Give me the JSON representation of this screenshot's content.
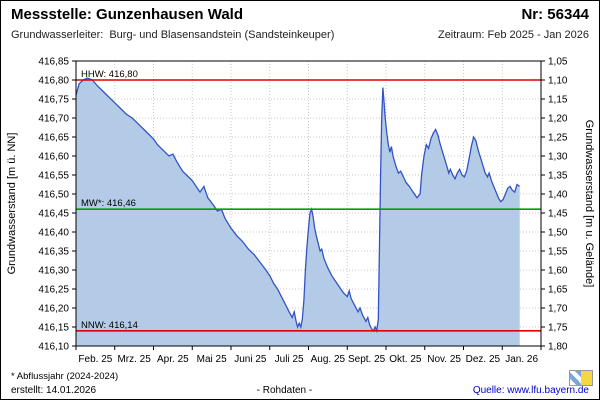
{
  "header": {
    "title": "Messstelle: Gunzenhausen Wald",
    "number": "Nr: 56344",
    "aquifer_label": "Grundwasserleiter:",
    "aquifer_value": "Burg- und Blasensandstein (Sandsteinkeuper)",
    "period": "Zeitraum: Feb 2025 - Jan 2026"
  },
  "footer": {
    "note": "* Abflussjahr (2024-2024)",
    "created": "erstellt:  14.01.2026",
    "center": "- Rohdaten -",
    "source": "Quelle: www.lfu.bayern.de"
  },
  "chart_data": {
    "type": "area",
    "title": "",
    "ylabel_left": "Grundwasserstand [m ü. NN]",
    "ylabel_right": "Grundwasserstand [m u. Gelände]",
    "ylim_left": [
      416.1,
      416.85
    ],
    "ylim_right": [
      1.8,
      1.05
    ],
    "y_tick_step": 0.05,
    "y_ticks_left": [
      "416,85",
      "416,80",
      "416,75",
      "416,70",
      "416,65",
      "416,60",
      "416,55",
      "416,50",
      "416,45",
      "416,40",
      "416,35",
      "416,30",
      "416,25",
      "416,20",
      "416,15",
      "416,10"
    ],
    "y_ticks_right": [
      "1,05",
      "1,10",
      "1,15",
      "1,20",
      "1,25",
      "1,30",
      "1,35",
      "1,40",
      "1,45",
      "1,50",
      "1,55",
      "1,60",
      "1,65",
      "1,70",
      "1,75",
      "1,80"
    ],
    "x_tick_labels": [
      "Feb. 25",
      "Mrz. 25",
      "Apr. 25",
      "Mai 25",
      "Juni 25",
      "Juli 25",
      "Aug. 25",
      "Sept. 25",
      "Okt. 25",
      "Nov. 25",
      "Dez. 25",
      "Jan. 26"
    ],
    "grid": true,
    "legend": "none",
    "reference_lines": [
      {
        "name": "HHW",
        "label": "HHW: 416,80",
        "value": 416.8,
        "color": "#e00000"
      },
      {
        "name": "MW",
        "label": "MW*: 416,46",
        "value": 416.46,
        "color": "#00a000"
      },
      {
        "name": "NNW",
        "label": "NNW: 416,14",
        "value": 416.14,
        "color": "#e00000"
      }
    ],
    "colors": {
      "area_fill": "#b3cbe7",
      "line": "#3353c4"
    },
    "series": [
      {
        "name": "Grundwasserstand Rohdaten",
        "x_unit": "months_from_Feb_2025",
        "points": [
          [
            0.0,
            416.76
          ],
          [
            0.08,
            416.79
          ],
          [
            0.18,
            416.8
          ],
          [
            0.3,
            416.805
          ],
          [
            0.42,
            416.8
          ],
          [
            0.55,
            416.785
          ],
          [
            0.7,
            416.77
          ],
          [
            0.85,
            416.755
          ],
          [
            1.0,
            416.74
          ],
          [
            1.15,
            416.725
          ],
          [
            1.3,
            416.71
          ],
          [
            1.45,
            416.7
          ],
          [
            1.6,
            416.685
          ],
          [
            1.75,
            416.67
          ],
          [
            1.9,
            416.655
          ],
          [
            2.0,
            416.645
          ],
          [
            2.1,
            416.63
          ],
          [
            2.25,
            416.615
          ],
          [
            2.4,
            416.6
          ],
          [
            2.5,
            416.605
          ],
          [
            2.6,
            416.585
          ],
          [
            2.75,
            416.56
          ],
          [
            2.9,
            416.545
          ],
          [
            3.0,
            416.535
          ],
          [
            3.1,
            416.52
          ],
          [
            3.2,
            416.505
          ],
          [
            3.3,
            416.52
          ],
          [
            3.4,
            416.49
          ],
          [
            3.55,
            416.47
          ],
          [
            3.65,
            416.455
          ],
          [
            3.75,
            416.46
          ],
          [
            3.85,
            416.435
          ],
          [
            4.0,
            416.41
          ],
          [
            4.15,
            416.39
          ],
          [
            4.3,
            416.375
          ],
          [
            4.45,
            416.355
          ],
          [
            4.6,
            416.34
          ],
          [
            4.75,
            416.32
          ],
          [
            4.9,
            416.3
          ],
          [
            5.0,
            416.285
          ],
          [
            5.1,
            416.265
          ],
          [
            5.2,
            416.25
          ],
          [
            5.3,
            416.23
          ],
          [
            5.4,
            416.21
          ],
          [
            5.5,
            416.19
          ],
          [
            5.58,
            416.175
          ],
          [
            5.63,
            416.19
          ],
          [
            5.68,
            416.165
          ],
          [
            5.72,
            416.15
          ],
          [
            5.76,
            416.16
          ],
          [
            5.8,
            416.15
          ],
          [
            5.84,
            416.17
          ],
          [
            5.88,
            416.22
          ],
          [
            5.92,
            416.3
          ],
          [
            5.96,
            416.36
          ],
          [
            6.0,
            416.41
          ],
          [
            6.04,
            416.45
          ],
          [
            6.08,
            416.46
          ],
          [
            6.12,
            416.44
          ],
          [
            6.16,
            416.41
          ],
          [
            6.2,
            416.39
          ],
          [
            6.25,
            416.37
          ],
          [
            6.3,
            416.35
          ],
          [
            6.34,
            416.355
          ],
          [
            6.4,
            416.33
          ],
          [
            6.5,
            416.305
          ],
          [
            6.6,
            416.285
          ],
          [
            6.7,
            416.27
          ],
          [
            6.8,
            416.255
          ],
          [
            6.9,
            416.24
          ],
          [
            7.0,
            416.23
          ],
          [
            7.05,
            416.245
          ],
          [
            7.1,
            416.225
          ],
          [
            7.2,
            416.205
          ],
          [
            7.28,
            416.19
          ],
          [
            7.33,
            416.2
          ],
          [
            7.4,
            416.18
          ],
          [
            7.48,
            416.165
          ],
          [
            7.53,
            416.175
          ],
          [
            7.58,
            416.155
          ],
          [
            7.63,
            416.145
          ],
          [
            7.68,
            416.14
          ],
          [
            7.72,
            416.15
          ],
          [
            7.76,
            416.14
          ],
          [
            7.8,
            416.17
          ],
          [
            7.83,
            416.35
          ],
          [
            7.86,
            416.55
          ],
          [
            7.89,
            416.7
          ],
          [
            7.92,
            416.78
          ],
          [
            7.95,
            416.74
          ],
          [
            7.98,
            416.7
          ],
          [
            8.02,
            416.66
          ],
          [
            8.06,
            416.63
          ],
          [
            8.1,
            416.61
          ],
          [
            8.14,
            416.625
          ],
          [
            8.18,
            416.6
          ],
          [
            8.25,
            416.575
          ],
          [
            8.32,
            416.555
          ],
          [
            8.38,
            416.56
          ],
          [
            8.45,
            416.545
          ],
          [
            8.52,
            416.53
          ],
          [
            8.6,
            416.52
          ],
          [
            8.7,
            416.505
          ],
          [
            8.8,
            416.49
          ],
          [
            8.88,
            416.5
          ],
          [
            8.92,
            416.55
          ],
          [
            8.98,
            416.6
          ],
          [
            9.04,
            416.63
          ],
          [
            9.1,
            416.62
          ],
          [
            9.16,
            416.645
          ],
          [
            9.22,
            416.66
          ],
          [
            9.28,
            416.67
          ],
          [
            9.34,
            416.655
          ],
          [
            9.4,
            416.63
          ],
          [
            9.46,
            416.61
          ],
          [
            9.52,
            416.59
          ],
          [
            9.58,
            416.57
          ],
          [
            9.62,
            416.555
          ],
          [
            9.66,
            416.565
          ],
          [
            9.72,
            416.55
          ],
          [
            9.78,
            416.54
          ],
          [
            9.84,
            416.555
          ],
          [
            9.9,
            416.565
          ],
          [
            9.96,
            416.55
          ],
          [
            10.02,
            416.545
          ],
          [
            10.08,
            416.56
          ],
          [
            10.14,
            416.59
          ],
          [
            10.2,
            416.625
          ],
          [
            10.26,
            416.65
          ],
          [
            10.32,
            416.64
          ],
          [
            10.38,
            416.615
          ],
          [
            10.44,
            416.595
          ],
          [
            10.5,
            416.575
          ],
          [
            10.56,
            416.555
          ],
          [
            10.62,
            416.545
          ],
          [
            10.66,
            416.555
          ],
          [
            10.72,
            416.535
          ],
          [
            10.78,
            416.52
          ],
          [
            10.84,
            416.505
          ],
          [
            10.9,
            416.49
          ],
          [
            10.96,
            416.48
          ],
          [
            11.02,
            416.485
          ],
          [
            11.08,
            416.5
          ],
          [
            11.14,
            416.515
          ],
          [
            11.2,
            416.52
          ],
          [
            11.26,
            416.51
          ],
          [
            11.32,
            416.505
          ],
          [
            11.38,
            416.525
          ],
          [
            11.45,
            416.52
          ]
        ]
      }
    ]
  }
}
